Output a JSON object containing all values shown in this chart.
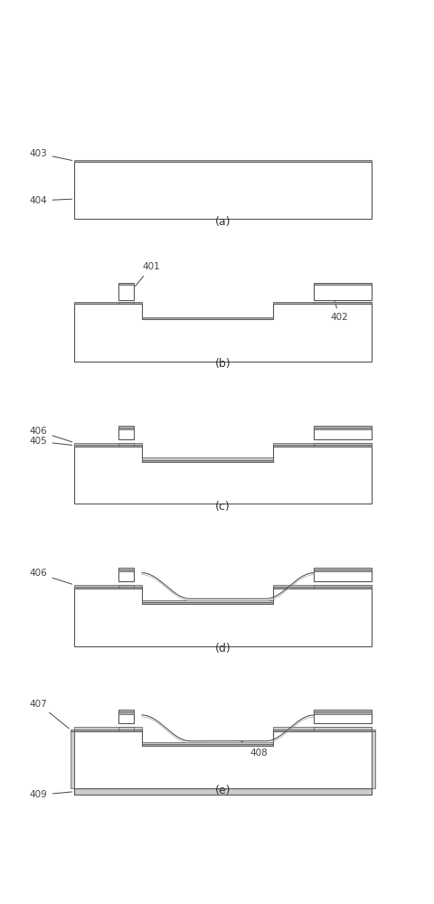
{
  "bg_color": "#ffffff",
  "line_color": "#555555",
  "fill_white": "#ffffff",
  "layer_dark": "#aaaaaa",
  "layer_mid": "#cccccc",
  "label_color": "#444444",
  "panels": [
    "(a)",
    "(b)",
    "(c)",
    "(d)",
    "(e)"
  ],
  "lw_main": 0.8,
  "lw_thin": 0.5,
  "th": 0.055,
  "fig_width": 4.81,
  "fig_height": 10.0,
  "SL": 0.6,
  "SR": 9.4,
  "SB": 0.3,
  "SH": 2.0,
  "SLo": 1.55,
  "StL": 2.6,
  "StR": 6.5,
  "PL": 1.9,
  "PR": 2.35,
  "PT": 2.62,
  "BL": 7.7,
  "BR": 9.4,
  "BT": 2.62
}
